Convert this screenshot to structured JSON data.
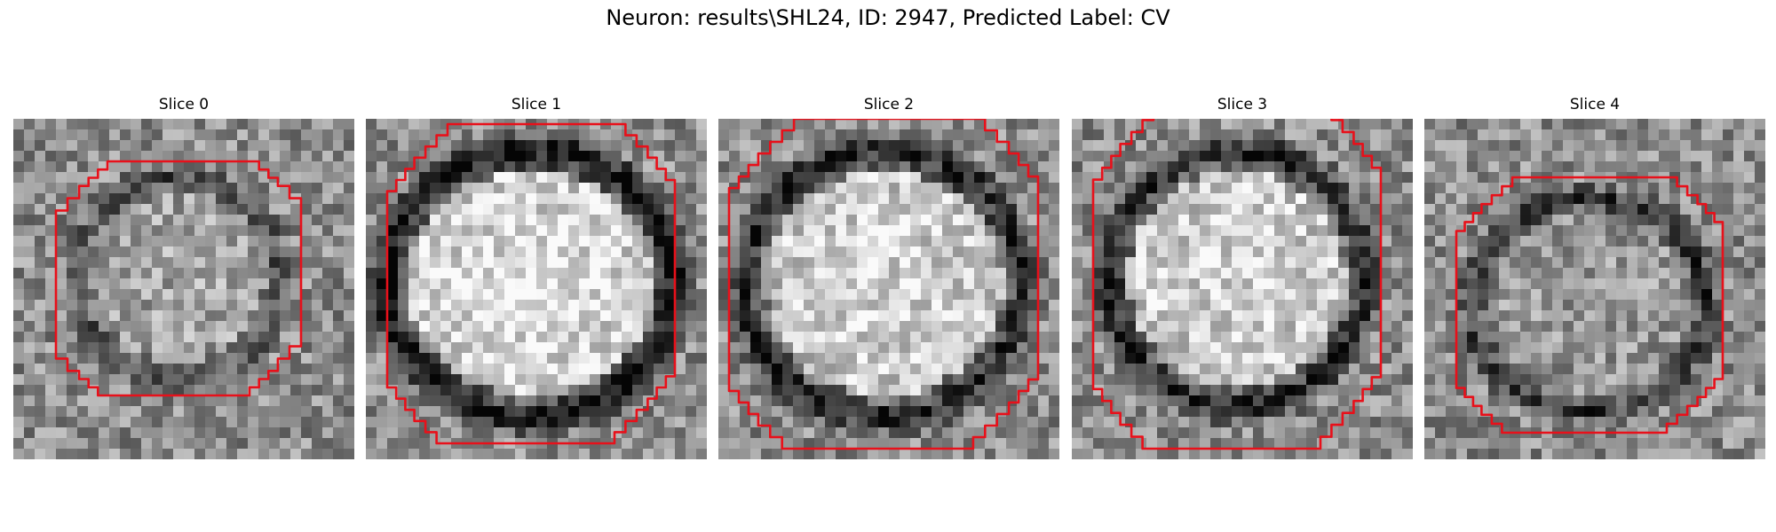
{
  "figure": {
    "title": "Neuron: results\\SHL24, ID: 2947, Predicted Label: CV"
  },
  "colors": {
    "contour": "#e8101a",
    "background": "#ffffff"
  },
  "panels": [
    {
      "title": "Slice 0"
    },
    {
      "title": "Slice 1"
    },
    {
      "title": "Slice 2"
    },
    {
      "title": "Slice 3"
    },
    {
      "title": "Slice 4"
    }
  ]
}
